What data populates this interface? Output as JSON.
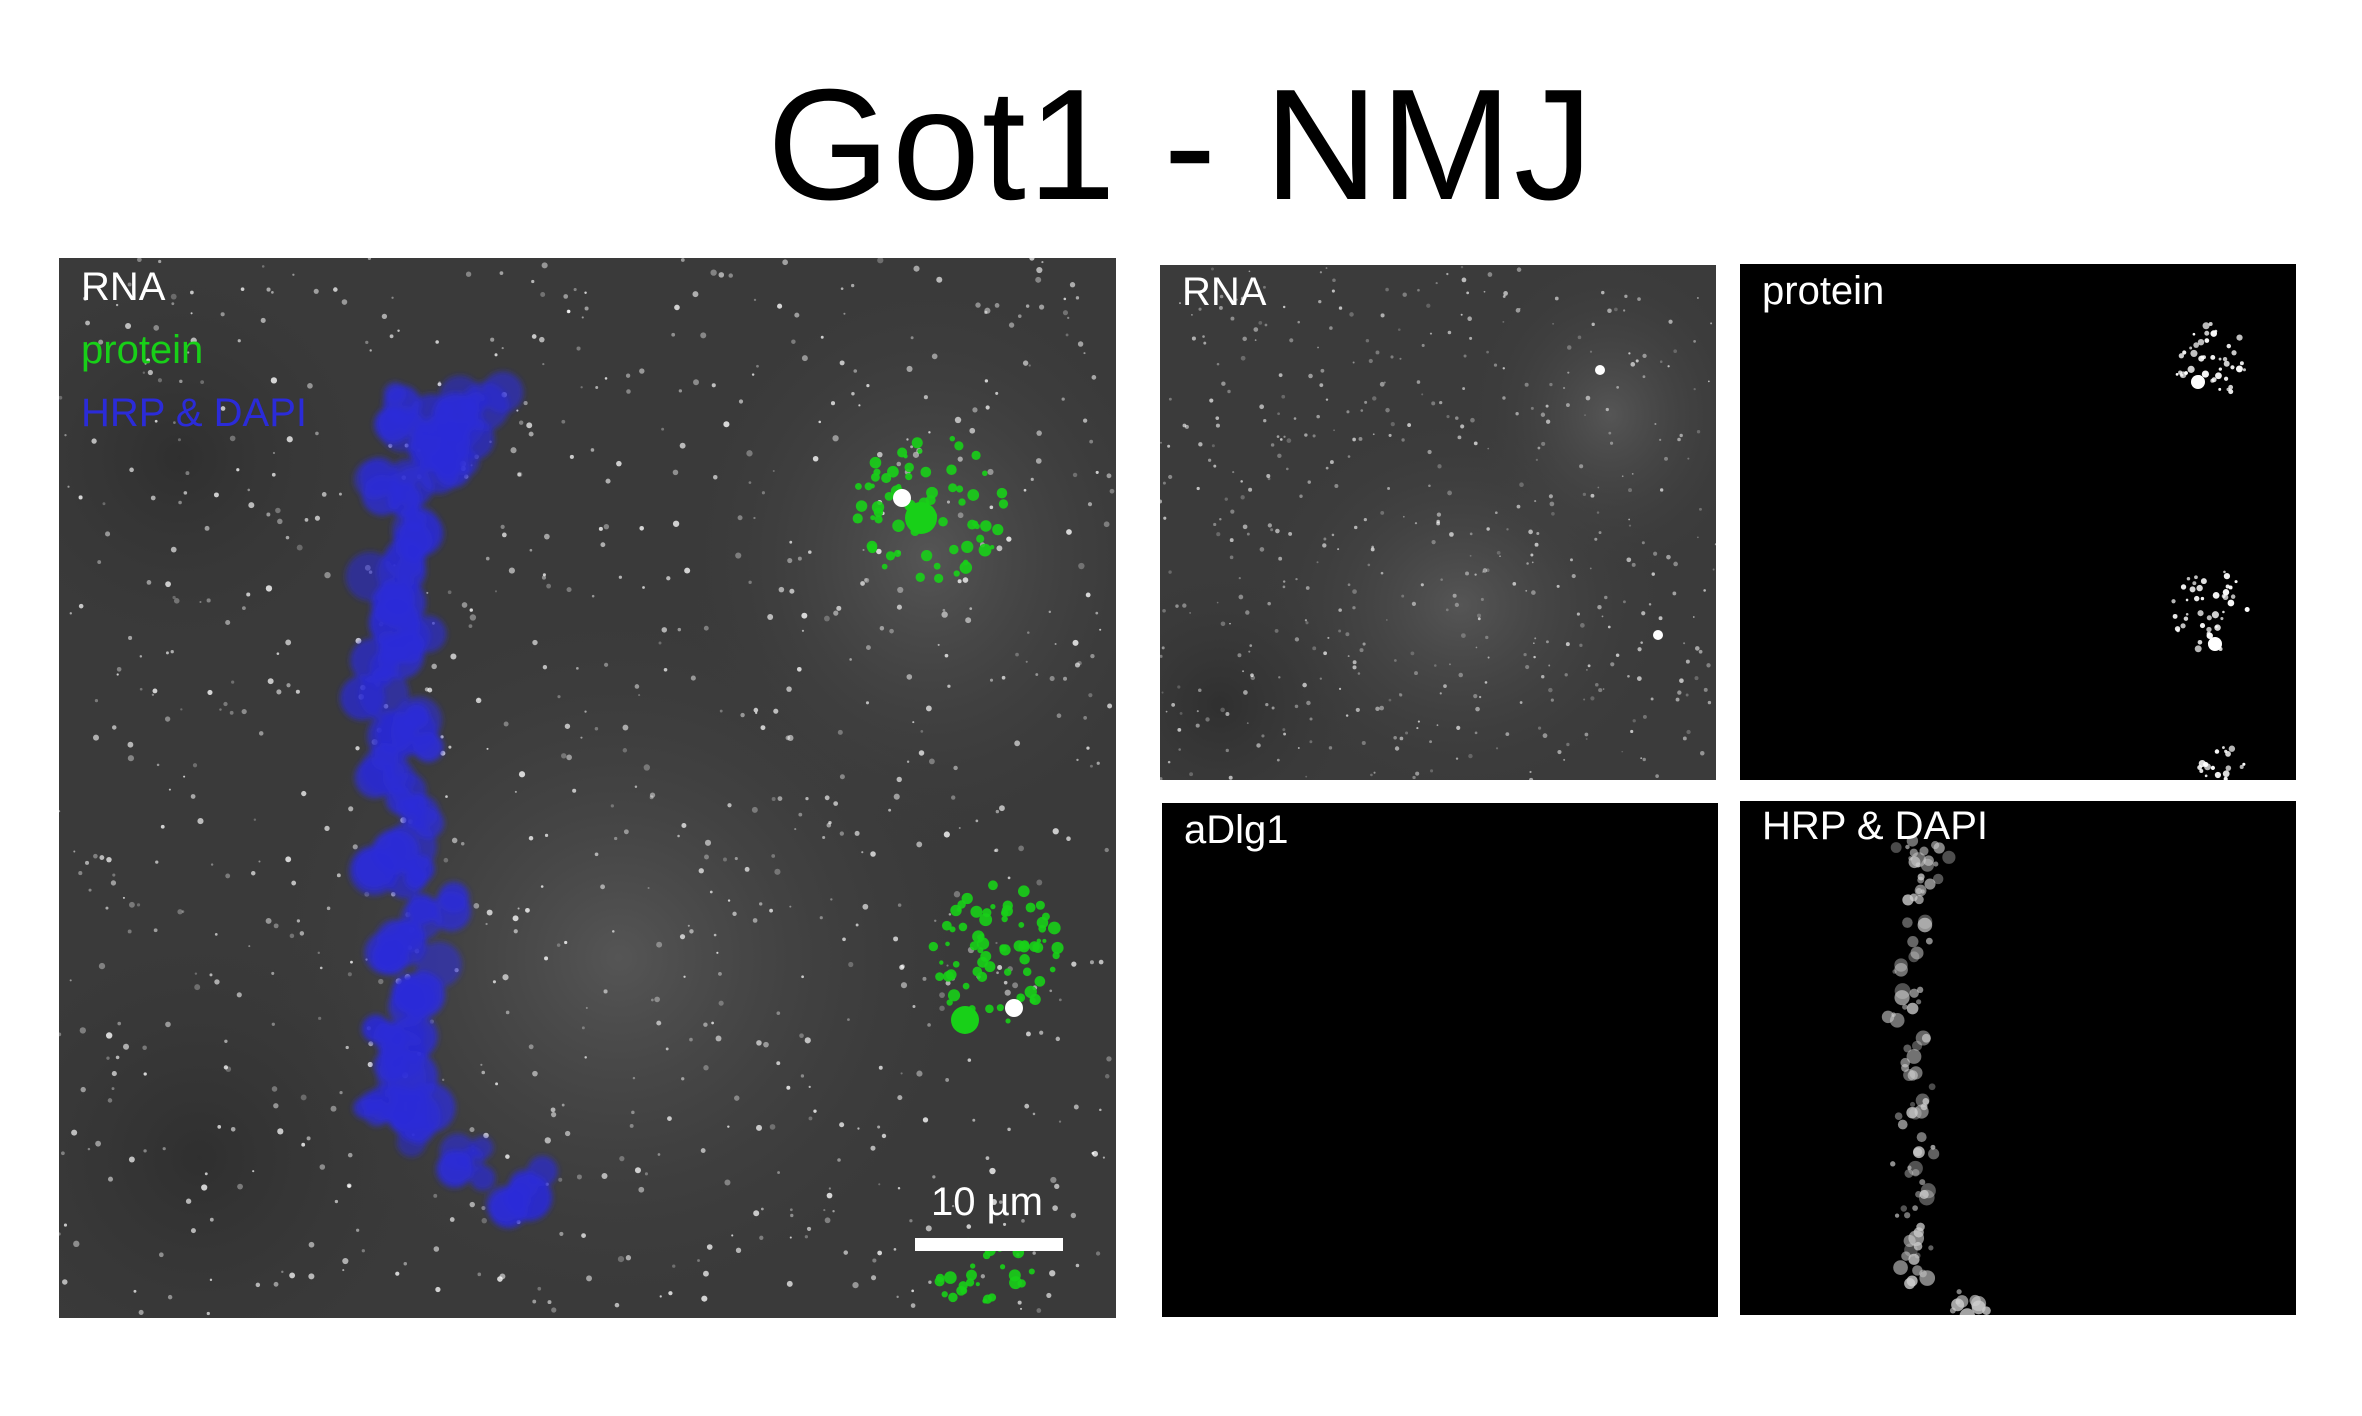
{
  "figure": {
    "title": "Got1 - NMJ"
  },
  "main_panel": {
    "legend": [
      {
        "text": "RNA",
        "color": "#ffffff"
      },
      {
        "text": "protein",
        "color": "#18d018"
      },
      {
        "text": "HRP & DAPI",
        "color": "#2b2bd8"
      }
    ],
    "scale_label": "10 µm"
  },
  "panels": {
    "rna": {
      "label": "RNA"
    },
    "protein": {
      "label": "protein"
    },
    "dlg": {
      "label": "aDlg1"
    },
    "hrp": {
      "label": "HRP & DAPI"
    }
  },
  "colors": {
    "rna": "#ffffff",
    "protein": "#18d018",
    "hrp": "#2b2bd8"
  }
}
